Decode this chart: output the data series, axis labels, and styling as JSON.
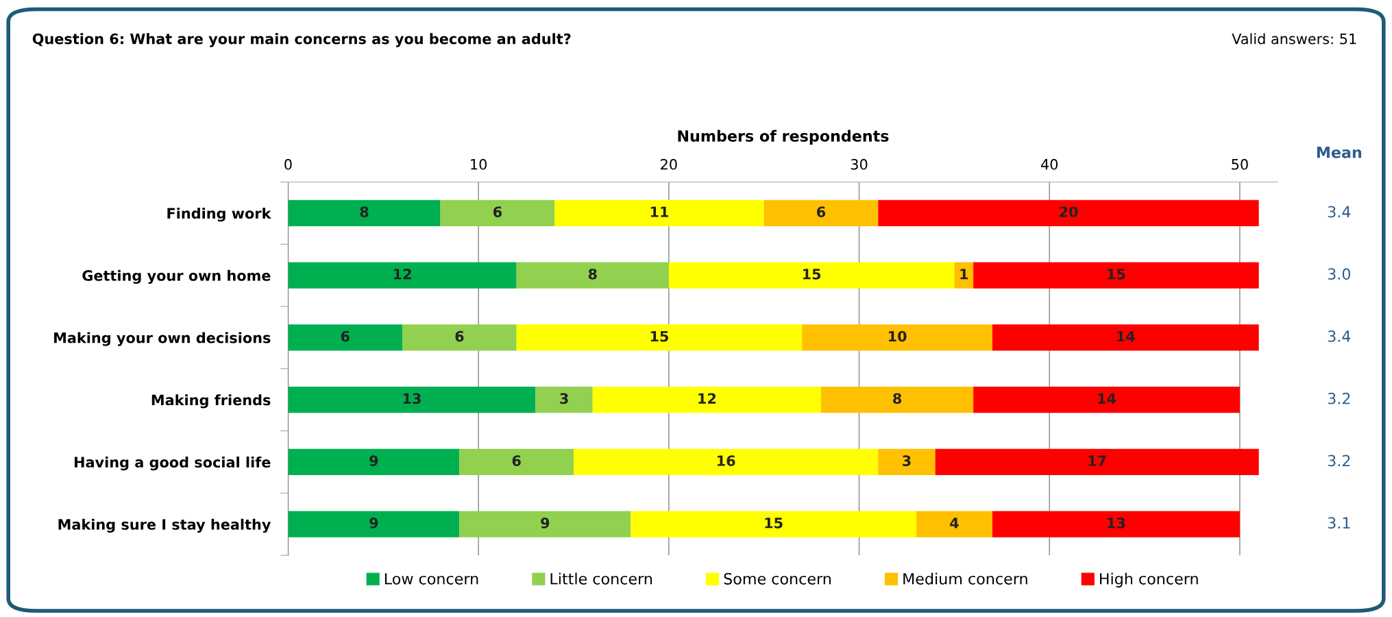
{
  "chart_data": {
    "type": "bar",
    "orientation": "horizontal",
    "stacked": true,
    "title": "Question 6: What are your main concerns as you become an adult?",
    "xlabel": "Numbers of respondents",
    "categories": [
      "Finding work",
      "Getting your own home",
      "Making your own decisions",
      "Making friends",
      "Having a good social life",
      "Making sure I stay healthy"
    ],
    "series": [
      {
        "name": "Low concern",
        "color": "#00b050",
        "values": [
          8,
          12,
          6,
          13,
          9,
          9
        ]
      },
      {
        "name": "Little concern",
        "color": "#92d050",
        "values": [
          6,
          8,
          6,
          3,
          6,
          9
        ]
      },
      {
        "name": "Some concern",
        "color": "#ffff00",
        "values": [
          11,
          15,
          15,
          12,
          16,
          15
        ]
      },
      {
        "name": "Medium concern",
        "color": "#ffc000",
        "values": [
          6,
          1,
          10,
          8,
          3,
          4
        ]
      },
      {
        "name": "High concern",
        "color": "#ff0000",
        "values": [
          20,
          15,
          14,
          14,
          17,
          13
        ]
      }
    ],
    "xlim": [
      0,
      52
    ],
    "xticks": [
      0,
      10,
      20,
      30,
      40,
      50
    ],
    "grid": "x",
    "legend": "bottom",
    "data_labels": true,
    "annotations": [
      "Valid answers: 51",
      "Mean",
      "3.4",
      "3.0",
      "3.4",
      "3.2",
      "3.2",
      "3.1"
    ]
  }
}
